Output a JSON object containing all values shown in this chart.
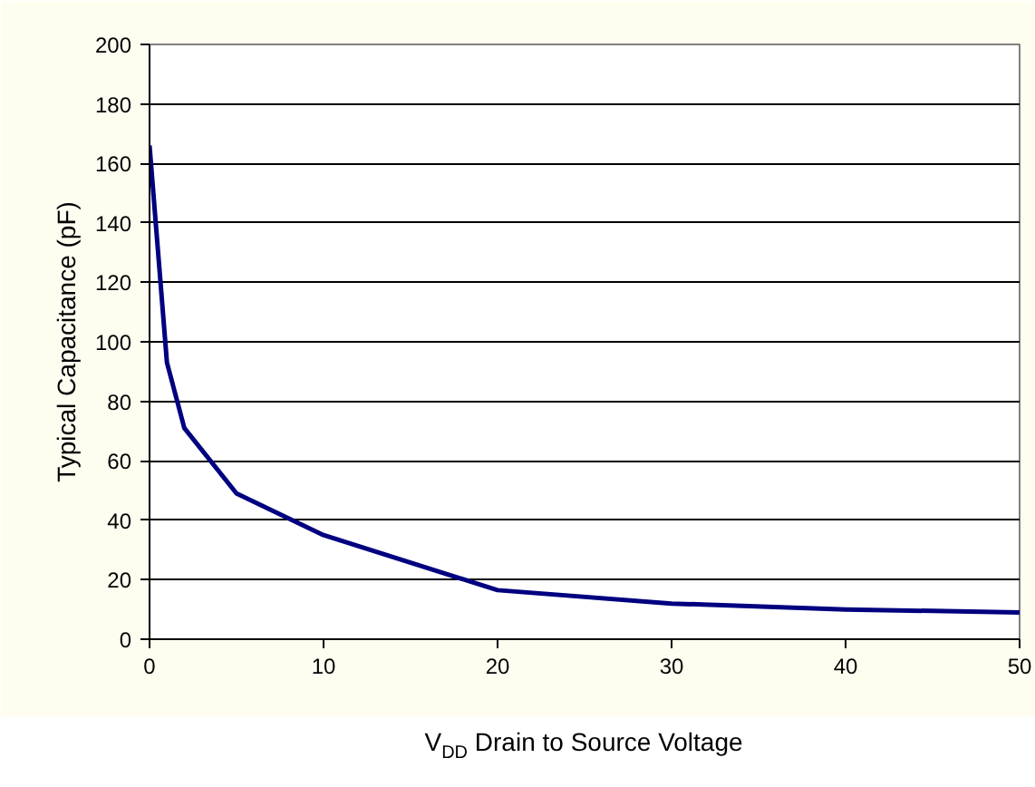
{
  "chart_data": {
    "type": "line",
    "xlabel": "V$_{DD}$ Drain to Source Voltage",
    "ylabel": "Typical Capacitance (pF)",
    "x": [
      0,
      1,
      2,
      5,
      10,
      20,
      30,
      40,
      50
    ],
    "series": [
      {
        "color": "#000080",
        "values": [
          166,
          93,
          71,
          49,
          35,
          16.5,
          12,
          10,
          9
        ]
      }
    ],
    "xlim": [
      0,
      50
    ],
    "xticks": [
      0,
      10,
      20,
      30,
      40,
      50
    ],
    "ylim": [
      0,
      200
    ],
    "yticks": [
      0,
      20,
      40,
      60,
      80,
      100,
      120,
      140,
      160,
      180,
      200
    ],
    "grid": "y",
    "marker": "none",
    "line_style": "solid"
  }
}
